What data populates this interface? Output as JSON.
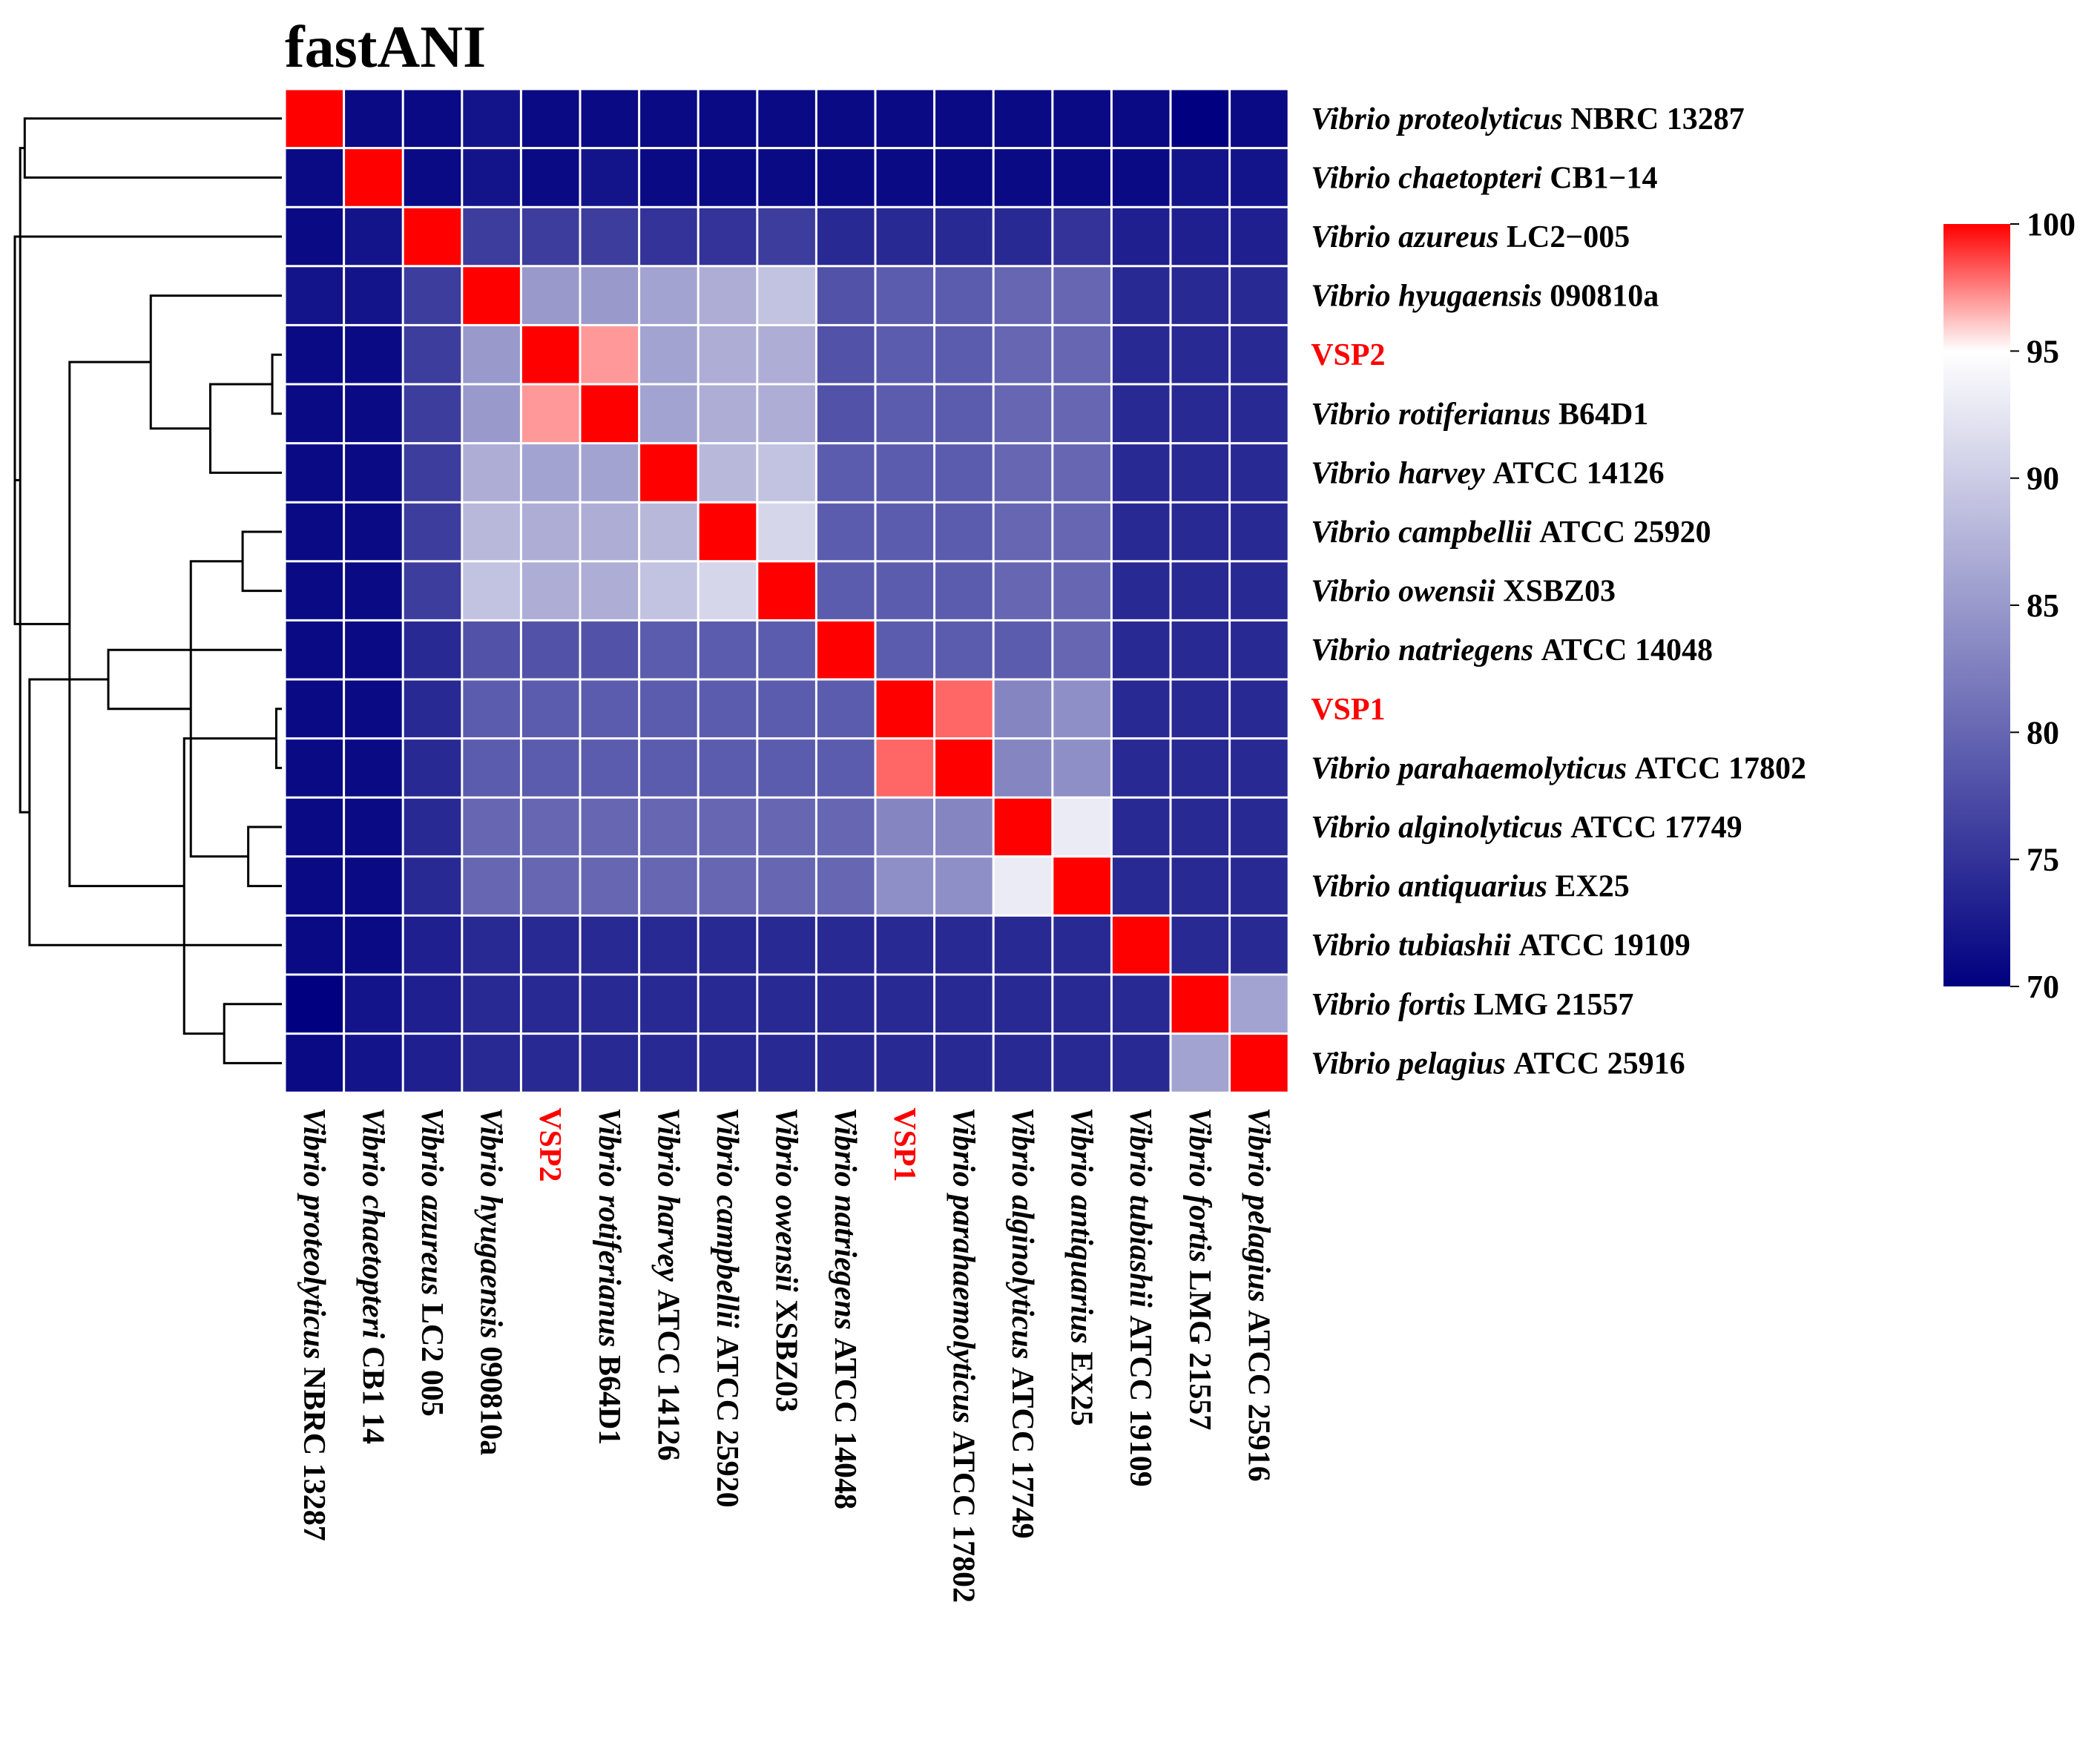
{
  "chart_data": {
    "type": "heatmap",
    "title": "fastANI",
    "rows": [
      {
        "species": "Vibrio proteolyticus",
        "strain": "NBRC 13287",
        "col_strain": "NBRC 13287",
        "highlight": false
      },
      {
        "species": "Vibrio chaetopteri",
        "strain": "CB1−14",
        "col_strain": "CB1 14",
        "highlight": false
      },
      {
        "species": "Vibrio azureus",
        "strain": "LC2−005",
        "col_strain": "LC2 005",
        "highlight": false
      },
      {
        "species": "Vibrio hyugaensis",
        "strain": "090810a",
        "col_strain": "090810a",
        "highlight": false
      },
      {
        "species": "",
        "strain": "VSP2",
        "col_strain": "VSP2",
        "highlight": true
      },
      {
        "species": "Vibrio rotiferianus",
        "strain": "B64D1",
        "col_strain": "B64D1",
        "highlight": false
      },
      {
        "species": "Vibrio harvey",
        "strain": "ATCC 14126",
        "col_strain": "ATCC 14126",
        "highlight": false
      },
      {
        "species": "Vibrio campbellii",
        "strain": "ATCC 25920",
        "col_strain": "ATCC 25920",
        "highlight": false
      },
      {
        "species": "Vibrio owensii",
        "strain": "XSBZ03",
        "col_strain": "XSBZ03",
        "highlight": false
      },
      {
        "species": "Vibrio natriegens",
        "strain": "ATCC 14048",
        "col_strain": "ATCC 14048",
        "highlight": false
      },
      {
        "species": "",
        "strain": "VSP1",
        "col_strain": "VSP1",
        "highlight": true
      },
      {
        "species": "Vibrio parahaemolyticus",
        "strain": "ATCC 17802",
        "col_strain": "ATCC 17802",
        "highlight": false
      },
      {
        "species": "Vibrio alginolyticus",
        "strain": "ATCC 17749",
        "col_strain": "ATCC 17749",
        "highlight": false
      },
      {
        "species": "Vibrio antiquarius",
        "strain": "EX25",
        "col_strain": "EX25",
        "highlight": false
      },
      {
        "species": "Vibrio tubiashii",
        "strain": "ATCC 19109",
        "col_strain": "ATCC 19109",
        "highlight": false
      },
      {
        "species": "Vibrio fortis",
        "strain": "LMG 21557",
        "col_strain": "LMG 21557",
        "highlight": false
      },
      {
        "species": "Vibrio pelagius",
        "strain": "ATCC 25916",
        "col_strain": "ATCC 25916",
        "highlight": false
      }
    ],
    "values": [
      [
        100,
        71,
        71,
        72,
        71,
        71,
        71,
        71,
        71,
        71,
        71,
        71,
        71,
        71,
        71,
        70,
        71
      ],
      [
        71,
        100,
        71,
        72,
        71,
        72,
        71,
        71,
        71,
        71,
        71,
        71,
        71,
        71,
        71,
        72,
        72
      ],
      [
        71,
        72,
        100,
        76,
        76,
        76,
        75,
        75,
        76,
        74,
        74,
        74,
        74,
        75,
        73,
        73,
        73
      ],
      [
        72,
        72,
        76,
        100,
        85,
        85,
        86,
        87,
        89,
        78,
        79,
        79,
        80,
        80,
        74,
        74,
        74
      ],
      [
        71,
        71,
        76,
        85,
        100,
        97,
        86,
        87,
        87,
        78,
        79,
        79,
        80,
        80,
        74,
        74,
        74
      ],
      [
        71,
        71,
        76,
        85,
        97,
        100,
        86,
        87,
        87,
        78,
        79,
        79,
        80,
        80,
        74,
        74,
        74
      ],
      [
        71,
        71,
        76,
        87,
        86,
        86,
        100,
        88,
        89,
        79,
        79,
        79,
        80,
        80,
        74,
        74,
        74
      ],
      [
        71,
        71,
        76,
        88,
        87,
        87,
        88,
        100,
        91,
        79,
        79,
        79,
        80,
        80,
        74,
        74,
        74
      ],
      [
        71,
        71,
        76,
        89,
        87,
        87,
        89,
        91,
        100,
        79,
        79,
        79,
        80,
        80,
        74,
        74,
        74
      ],
      [
        71,
        71,
        74,
        78,
        78,
        78,
        79,
        79,
        79,
        100,
        79,
        79,
        79,
        80,
        74,
        74,
        74
      ],
      [
        71,
        71,
        74,
        79,
        79,
        79,
        79,
        79,
        79,
        79,
        100,
        98,
        83,
        84,
        74,
        74,
        74
      ],
      [
        71,
        71,
        74,
        79,
        79,
        79,
        79,
        79,
        79,
        79,
        98,
        100,
        83,
        84,
        74,
        74,
        74
      ],
      [
        71,
        71,
        74,
        80,
        80,
        80,
        80,
        80,
        80,
        80,
        83,
        83,
        100,
        93,
        74,
        74,
        74
      ],
      [
        71,
        71,
        74,
        80,
        80,
        80,
        80,
        80,
        80,
        80,
        84,
        84,
        93,
        100,
        74,
        74,
        74
      ],
      [
        71,
        71,
        73,
        74,
        74,
        74,
        74,
        74,
        74,
        74,
        74,
        74,
        74,
        74,
        100,
        74,
        74
      ],
      [
        70,
        72,
        73,
        74,
        74,
        74,
        74,
        74,
        74,
        74,
        74,
        74,
        74,
        74,
        74,
        100,
        86
      ],
      [
        71,
        72,
        73,
        74,
        74,
        74,
        74,
        74,
        74,
        74,
        74,
        74,
        74,
        74,
        74,
        86,
        100
      ]
    ],
    "color_scale": {
      "min": 70,
      "mid": 95,
      "max": 100,
      "low_color": "#000080",
      "mid_color": "#ffffff",
      "high_color": "#ff0000",
      "ticks": [
        100,
        95,
        90,
        85,
        80,
        75,
        70
      ]
    },
    "dendrogram": {
      "pairs": [
        [
          4,
          5
        ],
        [
          10,
          11
        ],
        [
          12,
          13
        ],
        [
          7,
          8
        ],
        [
          15,
          16
        ],
        [
          17,
          6
        ],
        [
          21,
          18
        ],
        [
          19,
          20
        ],
        [
          3,
          22
        ],
        [
          24,
          9
        ],
        [
          25,
          23
        ],
        [
          0,
          1
        ],
        [
          14,
          26
        ],
        [
          27,
          2
        ],
        [
          29,
          28
        ],
        [
          30,
          31
        ]
      ],
      "heights": [
        0.036,
        0.021,
        0.126,
        0.147,
        0.216,
        0.268,
        0.366,
        0.341,
        0.491,
        0.65,
        0.795,
        0.963,
        0.945,
        1.0,
        0.98,
        1.0
      ],
      "order": [
        0,
        1,
        2,
        3,
        4,
        5,
        6,
        7,
        8,
        9,
        10,
        11,
        12,
        13,
        14,
        15,
        16
      ]
    },
    "highlight_color": "#ff0000",
    "grid_color": "#ffffff"
  }
}
